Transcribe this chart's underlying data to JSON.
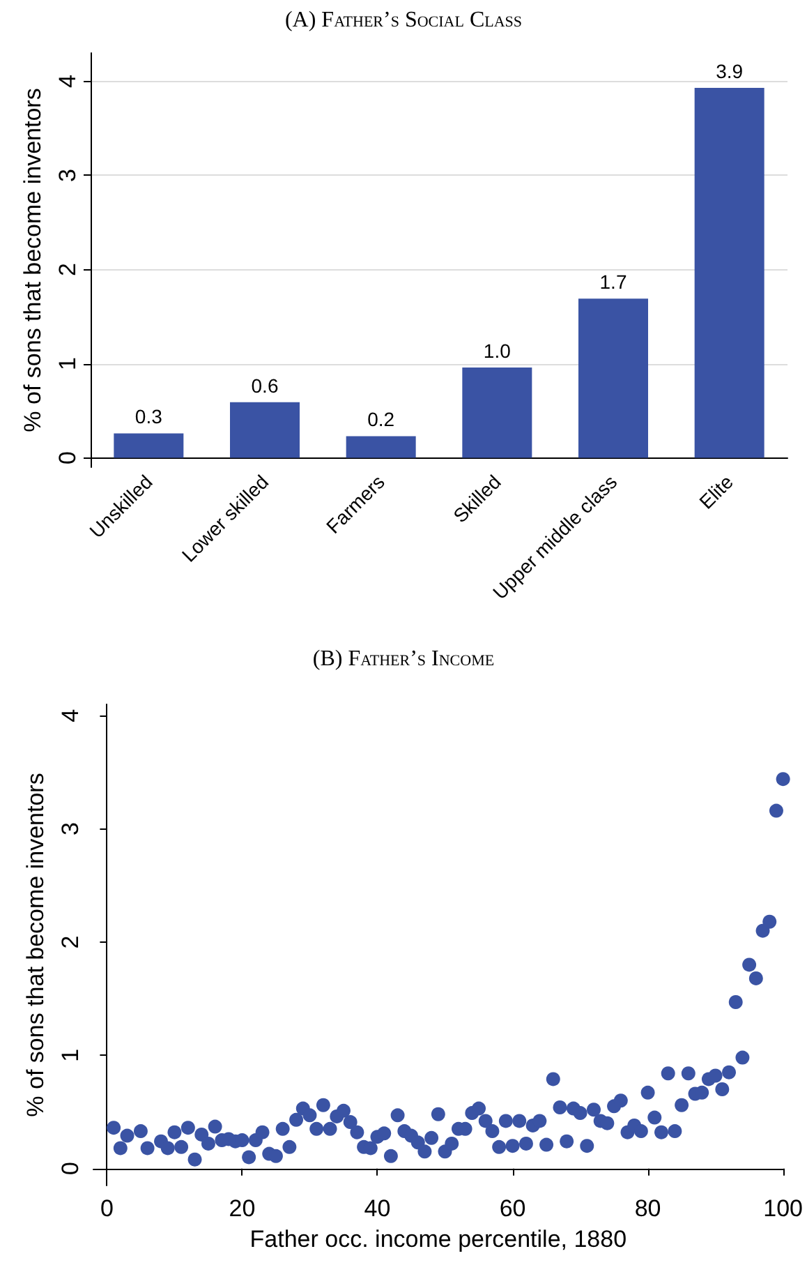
{
  "chart_data": [
    {
      "type": "bar",
      "title": "(A) Father’s Social Class",
      "ylabel": "% of sons that become inventors",
      "categories": [
        "Unskilled",
        "Lower skilled",
        "Farmers",
        "Skilled",
        "Upper middle class",
        "Elite"
      ],
      "values": [
        0.26,
        0.59,
        0.23,
        0.96,
        1.69,
        3.93
      ],
      "value_labels": [
        "0.3",
        "0.6",
        "0.2",
        "1.0",
        "1.7",
        "3.9"
      ],
      "color": "#3a53a4",
      "ylim": [
        -0.1,
        4.3
      ],
      "yticks": [
        0,
        1,
        2,
        3,
        4
      ],
      "grid": "y"
    },
    {
      "type": "scatter",
      "title": "(B) Father’s Income",
      "xlabel": "Father occ. income percentile, 1880",
      "ylabel": "% of sons that become inventors",
      "color": "#3a53a4",
      "marker": "circle",
      "x": [
        1,
        2,
        3,
        5,
        6,
        8,
        9,
        10,
        11,
        12,
        13,
        14,
        15,
        16,
        17,
        18,
        19,
        20,
        21,
        22,
        23,
        24,
        25,
        26,
        27,
        28,
        29,
        30,
        31,
        32,
        33,
        34,
        35,
        36,
        37,
        38,
        39,
        40,
        41,
        42,
        43,
        44,
        45,
        46,
        47,
        48,
        49,
        50,
        51,
        52,
        53,
        54,
        55,
        56,
        57,
        58,
        59,
        60,
        61,
        62,
        63,
        64,
        65,
        66,
        67,
        68,
        69,
        70,
        71,
        72,
        73,
        74,
        75,
        76,
        77,
        78,
        79,
        80,
        81,
        82,
        83,
        84,
        85,
        86,
        87,
        88,
        89,
        90,
        91,
        92,
        93,
        94,
        95,
        96,
        97,
        98,
        99,
        100
      ],
      "values": [
        0.36,
        0.18,
        0.29,
        0.33,
        0.18,
        0.24,
        0.18,
        0.32,
        0.19,
        0.36,
        0.08,
        0.3,
        0.22,
        0.37,
        0.25,
        0.26,
        0.24,
        0.25,
        0.1,
        0.25,
        0.32,
        0.13,
        0.11,
        0.35,
        0.19,
        0.43,
        0.53,
        0.47,
        0.35,
        0.56,
        0.35,
        0.46,
        0.51,
        0.41,
        0.32,
        0.19,
        0.18,
        0.28,
        0.31,
        0.11,
        0.47,
        0.33,
        0.29,
        0.23,
        0.15,
        0.27,
        0.48,
        0.15,
        0.22,
        0.35,
        0.35,
        0.49,
        0.53,
        0.42,
        0.33,
        0.19,
        0.42,
        0.2,
        0.42,
        0.22,
        0.38,
        0.42,
        0.21,
        0.79,
        0.54,
        0.24,
        0.53,
        0.49,
        0.2,
        0.52,
        0.42,
        0.4,
        0.55,
        0.6,
        0.32,
        0.38,
        0.33,
        0.67,
        0.45,
        0.32,
        0.84,
        0.33,
        0.56,
        0.84,
        0.66,
        0.67,
        0.79,
        0.82,
        0.7,
        0.85,
        1.47,
        0.98,
        1.8,
        1.68,
        2.1,
        2.18,
        3.16,
        3.44
      ],
      "xlim": [
        -2,
        100
      ],
      "xticks": [
        0,
        20,
        40,
        60,
        80,
        100
      ],
      "ylim": [
        -0.15,
        4.1
      ],
      "yticks": [
        0,
        1,
        2,
        3,
        4
      ]
    }
  ]
}
